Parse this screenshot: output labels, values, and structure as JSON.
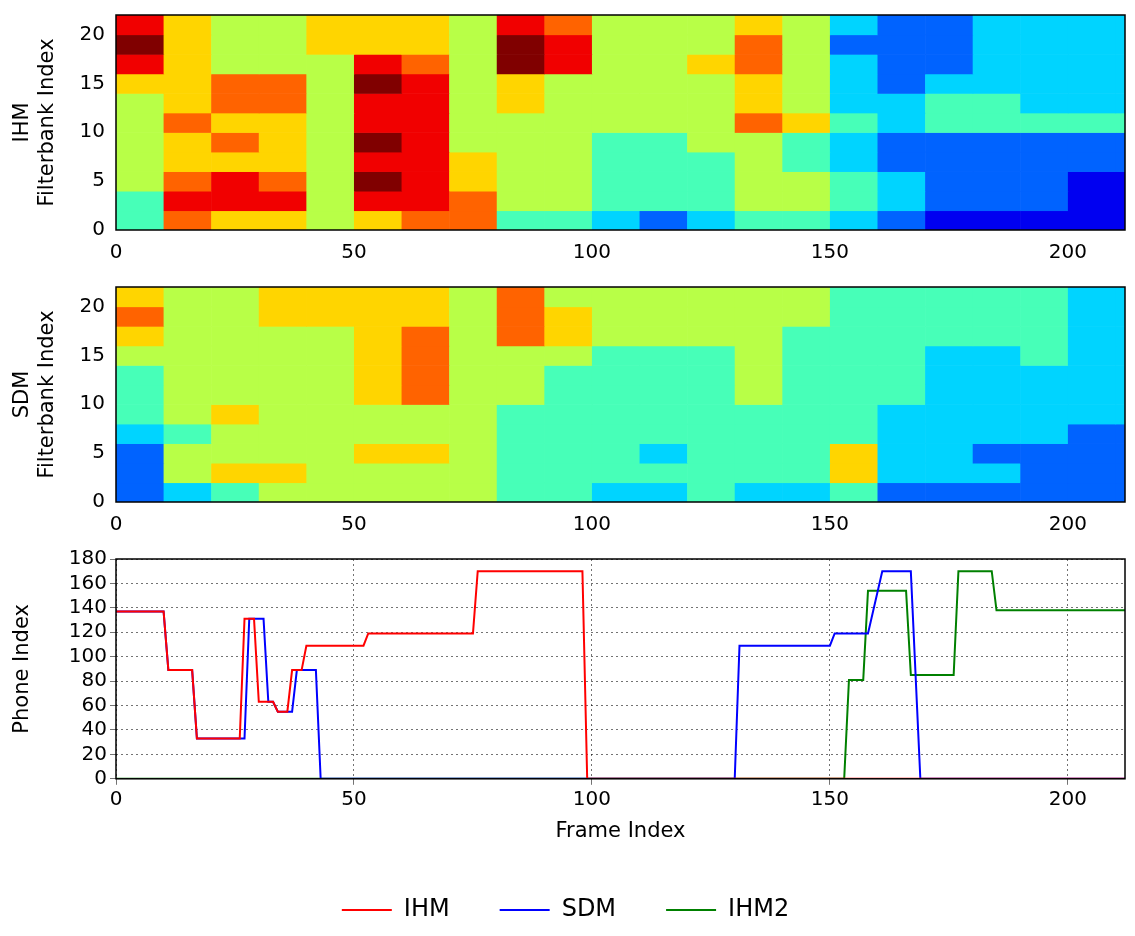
{
  "chart_data": [
    {
      "type": "heatmap",
      "ylabel": [
        "IHM",
        "Filterbank Index"
      ],
      "color": "jet",
      "zlim": [
        0,
        9
      ],
      "xlim": [
        0,
        212
      ],
      "xticks": [
        0,
        50,
        100,
        150,
        200
      ],
      "ylim": [
        0,
        22
      ],
      "yticks": [
        0,
        5,
        10,
        15,
        20
      ],
      "x_bins": [
        0,
        10,
        20,
        30,
        40,
        50,
        60,
        70,
        80,
        90,
        100,
        110,
        120,
        130,
        140,
        150,
        160,
        170,
        180,
        190,
        200,
        210,
        212
      ],
      "y_bins": [
        0,
        2,
        4,
        6,
        8,
        10,
        12,
        14,
        16,
        18,
        20,
        22
      ],
      "cells": [
        [
          4,
          7,
          6,
          6,
          5,
          6,
          7,
          7,
          4,
          4,
          3,
          2,
          3,
          4,
          4,
          3,
          2,
          1,
          1,
          1,
          1,
          1
        ],
        [
          4,
          8,
          8,
          8,
          5,
          8,
          8,
          7,
          5,
          5,
          4,
          4,
          4,
          5,
          5,
          4,
          3,
          2,
          2,
          2,
          1,
          1
        ],
        [
          5,
          7,
          8,
          7,
          5,
          9,
          8,
          6,
          5,
          5,
          4,
          4,
          4,
          5,
          5,
          4,
          3,
          2,
          2,
          2,
          1,
          1
        ],
        [
          5,
          6,
          6,
          6,
          5,
          8,
          8,
          6,
          5,
          5,
          4,
          4,
          4,
          5,
          4,
          3,
          2,
          2,
          2,
          2,
          2,
          2
        ],
        [
          5,
          6,
          7,
          6,
          5,
          9,
          8,
          5,
          5,
          5,
          4,
          4,
          5,
          5,
          4,
          3,
          2,
          2,
          2,
          2,
          2,
          2
        ],
        [
          5,
          7,
          6,
          6,
          5,
          8,
          8,
          5,
          5,
          5,
          5,
          5,
          5,
          7,
          6,
          4,
          3,
          4,
          4,
          4,
          4,
          4
        ],
        [
          5,
          6,
          7,
          7,
          5,
          8,
          8,
          5,
          6,
          5,
          5,
          5,
          5,
          6,
          5,
          3,
          3,
          4,
          4,
          3,
          3,
          3
        ],
        [
          6,
          6,
          7,
          7,
          5,
          9,
          8,
          5,
          6,
          5,
          5,
          5,
          5,
          6,
          5,
          3,
          2,
          3,
          3,
          3,
          3,
          3
        ],
        [
          8,
          6,
          5,
          5,
          5,
          8,
          7,
          5,
          9,
          8,
          5,
          5,
          6,
          7,
          5,
          3,
          2,
          2,
          3,
          3,
          3,
          3
        ],
        [
          9,
          6,
          5,
          5,
          6,
          6,
          6,
          5,
          9,
          8,
          5,
          5,
          5,
          7,
          5,
          2,
          2,
          2,
          3,
          3,
          3,
          3
        ],
        [
          8,
          6,
          5,
          5,
          6,
          6,
          6,
          5,
          8,
          7,
          5,
          5,
          5,
          6,
          5,
          3,
          2,
          2,
          3,
          3,
          3,
          3
        ]
      ]
    },
    {
      "type": "heatmap",
      "ylabel": [
        "SDM",
        "Filterbank Index"
      ],
      "color": "jet",
      "zlim": [
        0,
        9
      ],
      "xlim": [
        0,
        212
      ],
      "xticks": [
        0,
        50,
        100,
        150,
        200
      ],
      "ylim": [
        0,
        22
      ],
      "yticks": [
        0,
        5,
        10,
        15,
        20
      ],
      "x_bins": [
        0,
        10,
        20,
        30,
        40,
        50,
        60,
        70,
        80,
        90,
        100,
        110,
        120,
        130,
        140,
        150,
        160,
        170,
        180,
        190,
        200,
        210,
        212
      ],
      "y_bins": [
        0,
        2,
        4,
        6,
        8,
        10,
        12,
        14,
        16,
        18,
        20,
        22
      ],
      "cells": [
        [
          2,
          3,
          4,
          5,
          5,
          5,
          5,
          5,
          4,
          4,
          3,
          3,
          4,
          3,
          3,
          4,
          2,
          2,
          2,
          2,
          2,
          2
        ],
        [
          2,
          5,
          6,
          6,
          5,
          5,
          5,
          5,
          4,
          4,
          4,
          4,
          4,
          4,
          4,
          6,
          3,
          3,
          3,
          2,
          2,
          2
        ],
        [
          2,
          5,
          5,
          5,
          5,
          6,
          6,
          5,
          4,
          4,
          4,
          3,
          4,
          4,
          4,
          6,
          3,
          3,
          2,
          2,
          2,
          2
        ],
        [
          3,
          4,
          5,
          5,
          5,
          5,
          5,
          5,
          4,
          4,
          4,
          4,
          4,
          4,
          4,
          4,
          3,
          3,
          3,
          3,
          2,
          2
        ],
        [
          4,
          5,
          6,
          5,
          5,
          5,
          5,
          5,
          4,
          4,
          4,
          4,
          4,
          4,
          4,
          4,
          3,
          3,
          3,
          3,
          3,
          3
        ],
        [
          4,
          5,
          5,
          5,
          5,
          6,
          7,
          5,
          5,
          4,
          4,
          4,
          4,
          5,
          4,
          4,
          4,
          3,
          3,
          3,
          3,
          3
        ],
        [
          4,
          5,
          5,
          5,
          5,
          6,
          7,
          5,
          5,
          4,
          4,
          4,
          4,
          5,
          4,
          4,
          4,
          3,
          3,
          3,
          3,
          3
        ],
        [
          5,
          5,
          5,
          5,
          5,
          6,
          7,
          5,
          5,
          5,
          4,
          4,
          4,
          5,
          4,
          4,
          4,
          3,
          3,
          4,
          3,
          3
        ],
        [
          6,
          5,
          5,
          5,
          5,
          6,
          7,
          5,
          7,
          6,
          5,
          5,
          5,
          5,
          4,
          4,
          4,
          4,
          4,
          4,
          3,
          3
        ],
        [
          7,
          5,
          5,
          6,
          6,
          6,
          6,
          5,
          7,
          6,
          5,
          5,
          5,
          5,
          5,
          4,
          4,
          4,
          4,
          4,
          3,
          3
        ],
        [
          6,
          5,
          5,
          6,
          6,
          6,
          6,
          5,
          7,
          5,
          5,
          5,
          5,
          5,
          5,
          4,
          4,
          4,
          4,
          4,
          3,
          3
        ]
      ]
    },
    {
      "type": "line",
      "xlabel": "Frame Index",
      "ylabel": "Phone Index",
      "xlim": [
        0,
        212
      ],
      "xticks": [
        0,
        50,
        100,
        150,
        200
      ],
      "ylim": [
        0,
        180
      ],
      "yticks": [
        0,
        20,
        40,
        60,
        80,
        100,
        120,
        140,
        160,
        180
      ],
      "grid": true,
      "legend": "bottom",
      "series": [
        {
          "name": "IHM",
          "color": "#ff0000",
          "x": [
            0,
            10,
            11,
            16,
            17,
            26,
            27,
            29,
            30,
            33,
            34,
            36,
            37,
            39,
            40,
            52,
            53,
            75,
            76,
            98,
            99,
            212
          ],
          "values": [
            137,
            137,
            89,
            89,
            33,
            33,
            131,
            131,
            63,
            63,
            55,
            55,
            89,
            89,
            109,
            109,
            119,
            119,
            170,
            170,
            0,
            0
          ]
        },
        {
          "name": "SDM",
          "color": "#0000ff",
          "x": [
            0,
            10,
            11,
            16,
            17,
            27,
            28,
            31,
            32,
            33,
            34,
            37,
            38,
            42,
            43,
            130,
            131,
            150,
            151,
            158,
            161,
            167,
            169,
            212
          ],
          "values": [
            137,
            137,
            89,
            89,
            33,
            33,
            131,
            131,
            63,
            63,
            55,
            55,
            89,
            89,
            0,
            0,
            109,
            109,
            119,
            119,
            170,
            170,
            0,
            0
          ]
        },
        {
          "name": "IHM2",
          "color": "#008000",
          "x": [
            0,
            153,
            154,
            157,
            158,
            166,
            167,
            176,
            177,
            184,
            185,
            212
          ],
          "values": [
            0,
            0,
            81,
            81,
            154,
            154,
            85,
            85,
            170,
            170,
            138,
            138
          ]
        }
      ]
    }
  ]
}
